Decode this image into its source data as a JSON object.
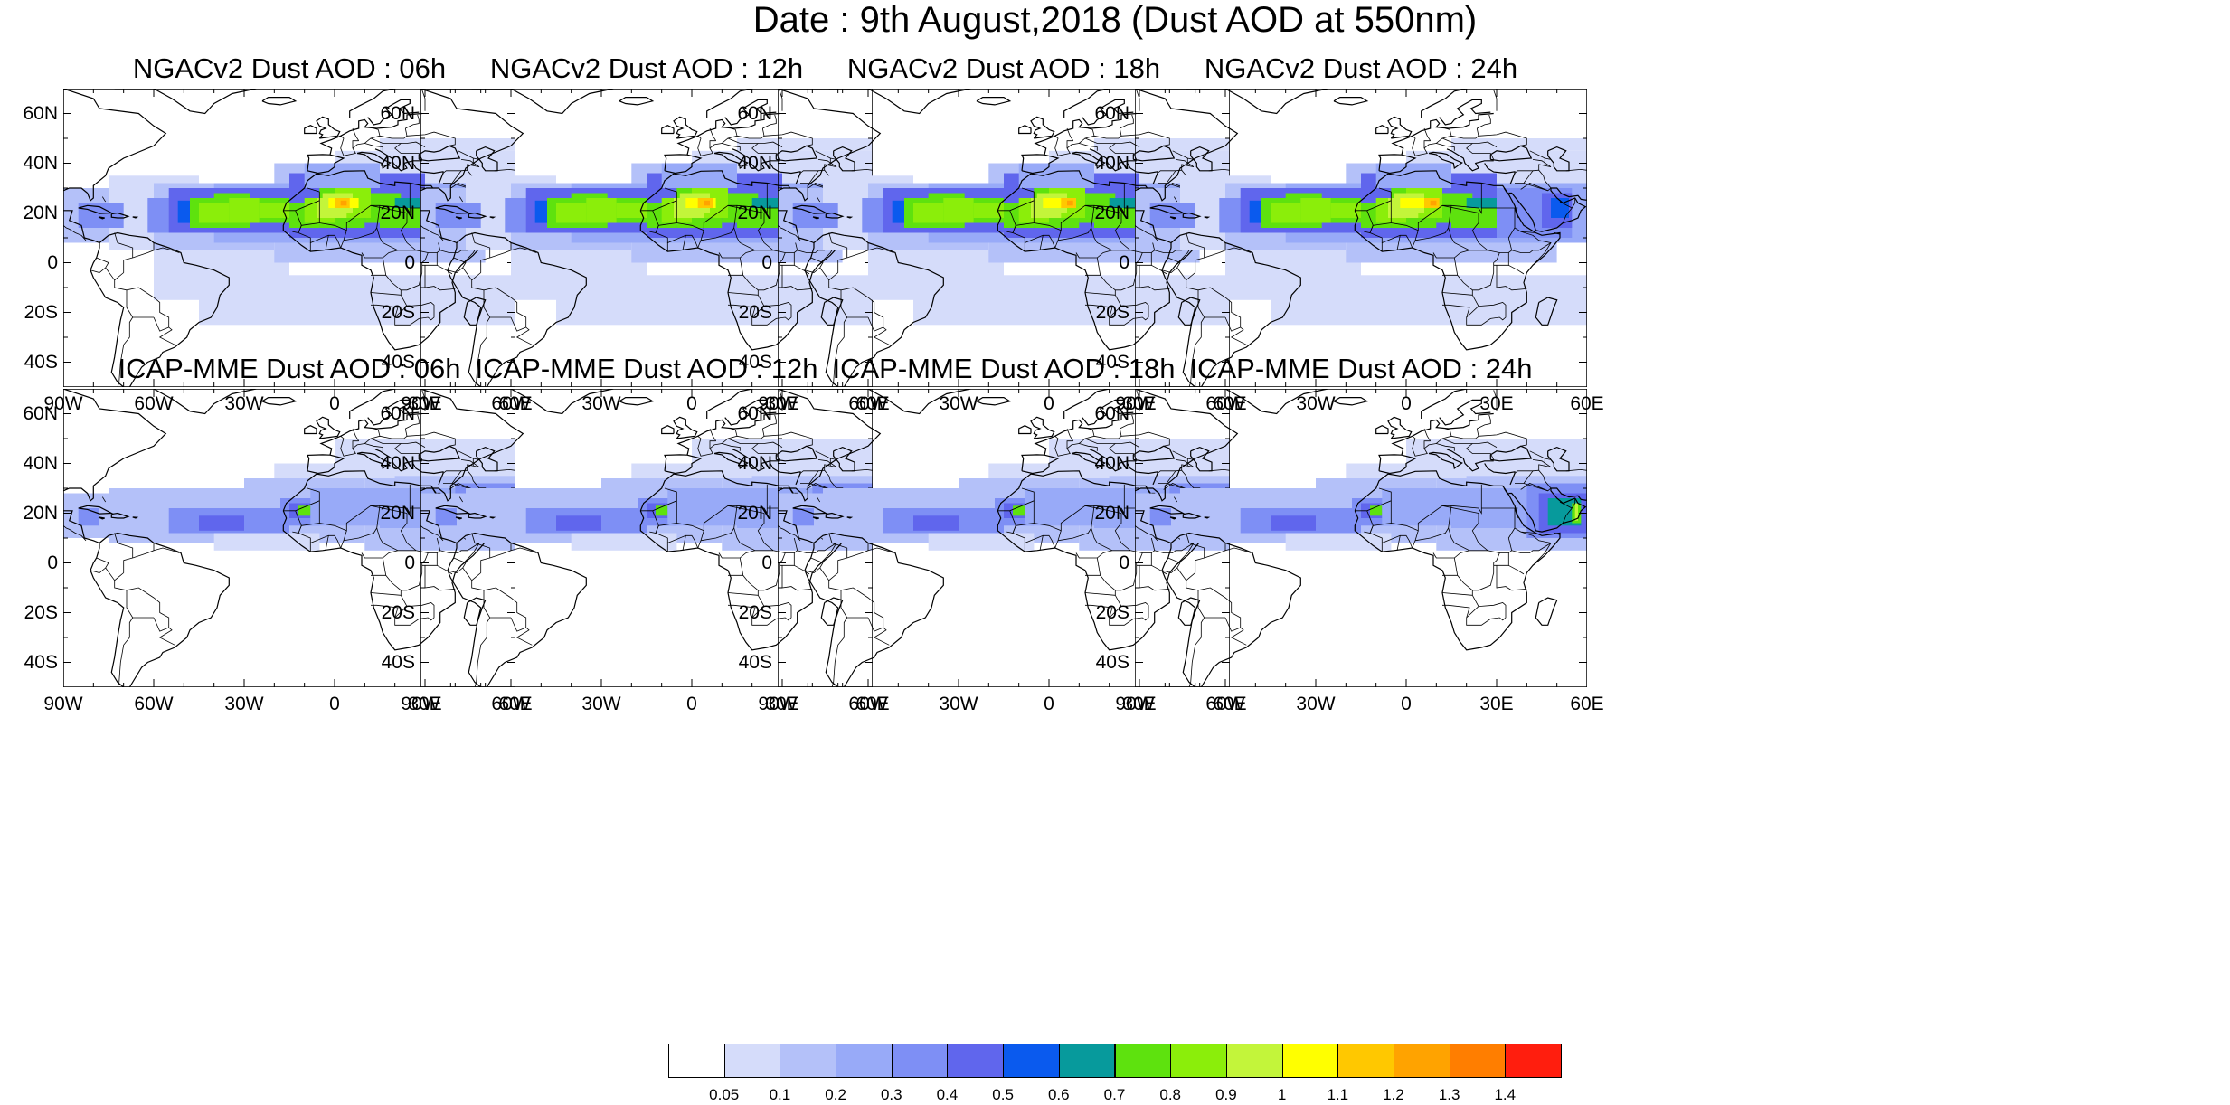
{
  "title": "Date : 9th August,2018 (Dust AOD at 550nm)",
  "panels": [
    {
      "model": "ngac",
      "title": "NGACv2 Dust AOD : 06h"
    },
    {
      "model": "ngac",
      "title": "NGACv2 Dust AOD : 12h"
    },
    {
      "model": "ngac",
      "title": "NGACv2 Dust AOD : 18h"
    },
    {
      "model": "ngac",
      "title": "NGACv2 Dust AOD : 24h"
    },
    {
      "model": "icap",
      "title": "ICAP-MME Dust AOD : 06h"
    },
    {
      "model": "icap",
      "title": "ICAP-MME Dust AOD : 12h"
    },
    {
      "model": "icap",
      "title": "ICAP-MME Dust AOD : 18h"
    },
    {
      "model": "icap",
      "title": "ICAP-MME Dust AOD : 24h"
    }
  ],
  "map": {
    "lon_range": [
      -90,
      60
    ],
    "lat_range": [
      -50,
      70
    ],
    "lat_ticks": [
      {
        "value": 60,
        "label": "60N"
      },
      {
        "value": 40,
        "label": "40N"
      },
      {
        "value": 20,
        "label": "20N"
      },
      {
        "value": 0,
        "label": "0"
      },
      {
        "value": -20,
        "label": "20S"
      },
      {
        "value": -40,
        "label": "40S"
      }
    ],
    "lon_ticks": [
      {
        "value": -90,
        "label": "90W"
      },
      {
        "value": -60,
        "label": "60W"
      },
      {
        "value": -30,
        "label": "30W"
      },
      {
        "value": 0,
        "label": "0"
      },
      {
        "value": 30,
        "label": "30E"
      },
      {
        "value": 60,
        "label": "60E"
      }
    ],
    "coastline_color": "#000000"
  },
  "colorbar": {
    "colors": [
      "#ffffff",
      "#d5dcfa",
      "#b4c1f9",
      "#98aaf8",
      "#7e8ff5",
      "#6066ed",
      "#0a5aee",
      "#079a9c",
      "#5ee20e",
      "#8bee0a",
      "#c3f53a",
      "#ffff00",
      "#ffc800",
      "#ffa300",
      "#ff7e00",
      "#ff1e0e"
    ],
    "labels": [
      "0.05",
      "0.1",
      "0.2",
      "0.3",
      "0.4",
      "0.5",
      "0.6",
      "0.7",
      "0.8",
      "0.9",
      "1",
      "1.1",
      "1.2",
      "1.3",
      "1.4"
    ]
  }
}
